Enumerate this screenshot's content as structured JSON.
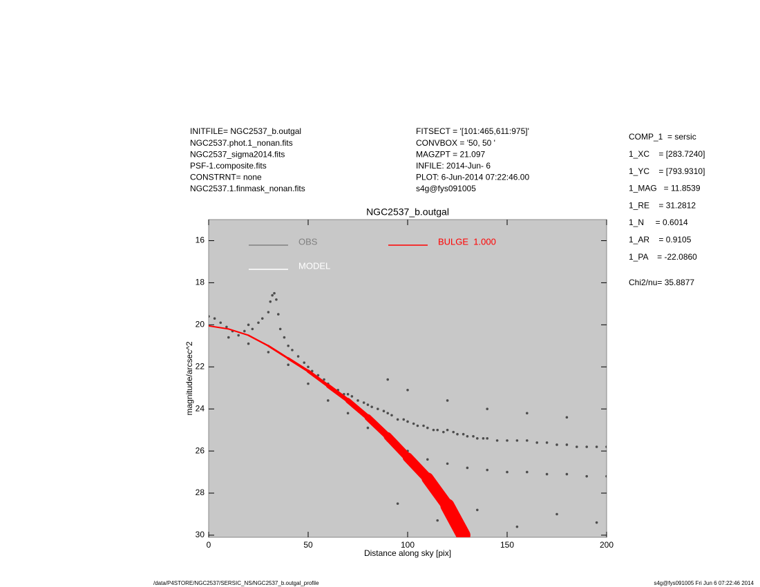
{
  "header_left": [
    "INITFILE= NGC2537_b.outgal",
    "NGC2537.phot.1_nonan.fits",
    "NGC2537_sigma2014.fits",
    "PSF-1.composite.fits",
    "CONSTRNT= none",
    "NGC2537.1.finmask_nonan.fits"
  ],
  "header_mid": [
    "FITSECT = '[101:465,611:975]'",
    "CONVBOX = '50, 50  '",
    "MAGZPT  =              21.097",
    "INFILE: 2014-Jun- 6",
    "PLOT:  6-Jun-2014 07:22:46.00",
    "s4g@fys091005"
  ],
  "params": [
    "COMP_1  = sersic",
    "1_XC    = [283.7240]",
    "1_YC    = [793.9310]",
    "1_MAG   = 11.8539",
    "1_RE    = 31.2812",
    "1_N     = 0.6014",
    "1_AR    = 0.9105",
    "1_PA    = -22.0860"
  ],
  "chi2": "Chi2/nu=      35.8877",
  "footer_left": "/data/P4STORE/NGC2537/SERSIC_NS/NGC2537_b.outgal_profile",
  "footer_right": "s4g@fys091005  Fri Jun  6 07:22:46 2014",
  "chart_data": {
    "type": "scatter",
    "title": "NGC2537_b.outgal",
    "xlabel": "Distance along sky [pix]",
    "ylabel": "magnitude/arcsec^2",
    "xlim": [
      0,
      200
    ],
    "xticks": [
      0,
      50,
      100,
      150,
      200
    ],
    "ylim": [
      30.1,
      15
    ],
    "yticks": [
      16,
      18,
      20,
      22,
      24,
      26,
      28,
      30
    ],
    "background": "#c8c8c8",
    "series": [
      {
        "name": "OBS",
        "color": "#808080",
        "point_color": "#4d4d4d",
        "x": [
          0,
          3,
          6,
          9,
          12,
          15,
          18,
          20,
          22,
          25,
          27,
          30,
          31,
          32,
          33,
          34,
          35,
          36,
          38,
          40,
          42,
          45,
          48,
          50,
          52,
          55,
          58,
          60,
          62,
          65,
          68,
          70,
          72,
          75,
          78,
          80,
          82,
          85,
          88,
          90,
          92,
          95,
          98,
          100,
          103,
          105,
          108,
          110,
          113,
          115,
          118,
          120,
          123,
          125,
          128,
          130,
          133,
          135,
          138,
          140,
          145,
          150,
          155,
          160,
          165,
          170,
          175,
          180,
          185,
          190,
          195,
          200,
          10,
          20,
          30,
          40,
          50,
          60,
          70,
          80,
          90,
          100,
          110,
          120,
          130,
          140,
          150,
          160,
          170,
          180,
          190,
          200,
          90,
          100,
          120,
          140,
          160,
          180,
          95,
          115,
          135,
          155,
          175,
          195
        ],
        "values": [
          19.6,
          19.7,
          19.9,
          20.1,
          20.3,
          20.5,
          20.3,
          20.0,
          20.2,
          19.9,
          19.7,
          19.4,
          18.9,
          18.6,
          18.5,
          18.8,
          19.5,
          20.2,
          20.6,
          21.0,
          21.2,
          21.5,
          21.8,
          22.0,
          22.2,
          22.4,
          22.6,
          22.8,
          23.0,
          23.1,
          23.3,
          23.3,
          23.4,
          23.6,
          23.7,
          23.8,
          23.9,
          24.0,
          24.1,
          24.2,
          24.3,
          24.5,
          24.5,
          24.6,
          24.7,
          24.8,
          24.8,
          24.9,
          25.0,
          25.0,
          25.1,
          25.0,
          25.1,
          25.2,
          25.2,
          25.3,
          25.3,
          25.4,
          25.4,
          25.4,
          25.5,
          25.5,
          25.5,
          25.5,
          25.6,
          25.6,
          25.7,
          25.7,
          25.8,
          25.8,
          25.8,
          25.8,
          20.6,
          20.9,
          21.3,
          21.9,
          22.8,
          23.6,
          24.2,
          24.9,
          25.5,
          26.0,
          26.4,
          26.6,
          26.8,
          26.9,
          27.0,
          27.0,
          27.1,
          27.1,
          27.2,
          27.2,
          22.6,
          23.1,
          23.6,
          24.0,
          24.2,
          24.4,
          28.5,
          29.3,
          28.8,
          29.6,
          29.0,
          29.4
        ]
      },
      {
        "name": "MODEL",
        "color": "#ffffff",
        "x": [
          0,
          10,
          20,
          30,
          40,
          50,
          60,
          70,
          80,
          90,
          100,
          110,
          120,
          128
        ],
        "values": [
          20.05,
          20.2,
          20.5,
          21.0,
          21.6,
          22.2,
          22.9,
          23.6,
          24.4,
          25.3,
          26.3,
          27.3,
          28.6,
          30.0
        ]
      },
      {
        "name": "BULGE  1.000",
        "color": "#ff0000",
        "x": [
          0,
          10,
          20,
          30,
          40,
          50,
          60,
          70,
          80,
          90,
          100,
          110,
          120,
          128
        ],
        "values": [
          20.05,
          20.2,
          20.5,
          21.0,
          21.6,
          22.2,
          22.9,
          23.6,
          24.4,
          25.3,
          26.3,
          27.3,
          28.6,
          30.0
        ]
      }
    ]
  }
}
